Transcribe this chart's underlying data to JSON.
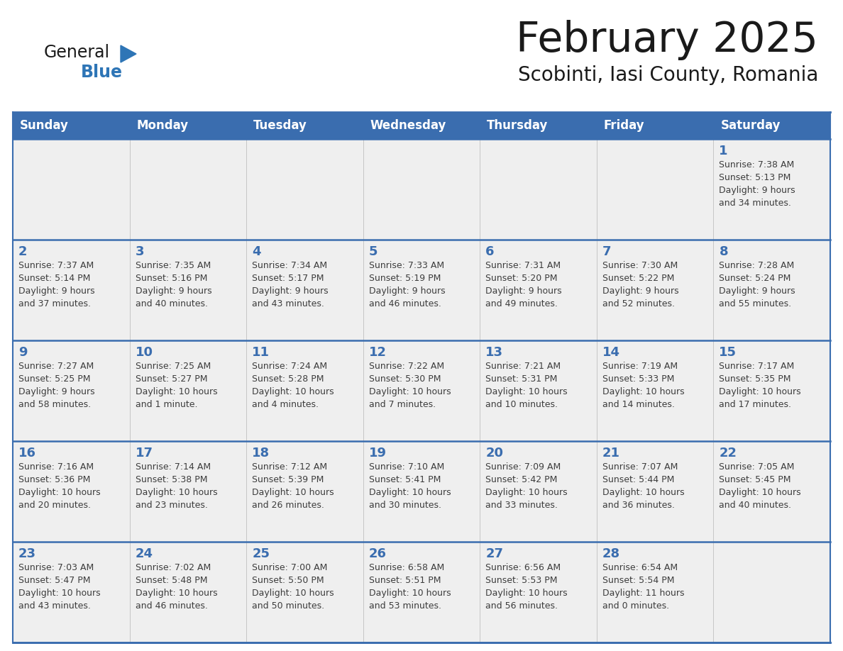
{
  "title": "February 2025",
  "subtitle": "Scobinti, Iasi County, Romania",
  "header_bg": "#3A6DAF",
  "header_text_color": "#FFFFFF",
  "cell_bg": "#EFEFEF",
  "day_number_color": "#3A6DAF",
  "info_text_color": "#3d3d3d",
  "border_color": "#3A6DAF",
  "logo_general_color": "#1a1a1a",
  "logo_blue_color": "#2E75B6",
  "logo_triangle_color": "#2E75B6",
  "days_of_week": [
    "Sunday",
    "Monday",
    "Tuesday",
    "Wednesday",
    "Thursday",
    "Friday",
    "Saturday"
  ],
  "weeks": [
    [
      {
        "day": null,
        "info": ""
      },
      {
        "day": null,
        "info": ""
      },
      {
        "day": null,
        "info": ""
      },
      {
        "day": null,
        "info": ""
      },
      {
        "day": null,
        "info": ""
      },
      {
        "day": null,
        "info": ""
      },
      {
        "day": 1,
        "info": "Sunrise: 7:38 AM\nSunset: 5:13 PM\nDaylight: 9 hours\nand 34 minutes."
      }
    ],
    [
      {
        "day": 2,
        "info": "Sunrise: 7:37 AM\nSunset: 5:14 PM\nDaylight: 9 hours\nand 37 minutes."
      },
      {
        "day": 3,
        "info": "Sunrise: 7:35 AM\nSunset: 5:16 PM\nDaylight: 9 hours\nand 40 minutes."
      },
      {
        "day": 4,
        "info": "Sunrise: 7:34 AM\nSunset: 5:17 PM\nDaylight: 9 hours\nand 43 minutes."
      },
      {
        "day": 5,
        "info": "Sunrise: 7:33 AM\nSunset: 5:19 PM\nDaylight: 9 hours\nand 46 minutes."
      },
      {
        "day": 6,
        "info": "Sunrise: 7:31 AM\nSunset: 5:20 PM\nDaylight: 9 hours\nand 49 minutes."
      },
      {
        "day": 7,
        "info": "Sunrise: 7:30 AM\nSunset: 5:22 PM\nDaylight: 9 hours\nand 52 minutes."
      },
      {
        "day": 8,
        "info": "Sunrise: 7:28 AM\nSunset: 5:24 PM\nDaylight: 9 hours\nand 55 minutes."
      }
    ],
    [
      {
        "day": 9,
        "info": "Sunrise: 7:27 AM\nSunset: 5:25 PM\nDaylight: 9 hours\nand 58 minutes."
      },
      {
        "day": 10,
        "info": "Sunrise: 7:25 AM\nSunset: 5:27 PM\nDaylight: 10 hours\nand 1 minute."
      },
      {
        "day": 11,
        "info": "Sunrise: 7:24 AM\nSunset: 5:28 PM\nDaylight: 10 hours\nand 4 minutes."
      },
      {
        "day": 12,
        "info": "Sunrise: 7:22 AM\nSunset: 5:30 PM\nDaylight: 10 hours\nand 7 minutes."
      },
      {
        "day": 13,
        "info": "Sunrise: 7:21 AM\nSunset: 5:31 PM\nDaylight: 10 hours\nand 10 minutes."
      },
      {
        "day": 14,
        "info": "Sunrise: 7:19 AM\nSunset: 5:33 PM\nDaylight: 10 hours\nand 14 minutes."
      },
      {
        "day": 15,
        "info": "Sunrise: 7:17 AM\nSunset: 5:35 PM\nDaylight: 10 hours\nand 17 minutes."
      }
    ],
    [
      {
        "day": 16,
        "info": "Sunrise: 7:16 AM\nSunset: 5:36 PM\nDaylight: 10 hours\nand 20 minutes."
      },
      {
        "day": 17,
        "info": "Sunrise: 7:14 AM\nSunset: 5:38 PM\nDaylight: 10 hours\nand 23 minutes."
      },
      {
        "day": 18,
        "info": "Sunrise: 7:12 AM\nSunset: 5:39 PM\nDaylight: 10 hours\nand 26 minutes."
      },
      {
        "day": 19,
        "info": "Sunrise: 7:10 AM\nSunset: 5:41 PM\nDaylight: 10 hours\nand 30 minutes."
      },
      {
        "day": 20,
        "info": "Sunrise: 7:09 AM\nSunset: 5:42 PM\nDaylight: 10 hours\nand 33 minutes."
      },
      {
        "day": 21,
        "info": "Sunrise: 7:07 AM\nSunset: 5:44 PM\nDaylight: 10 hours\nand 36 minutes."
      },
      {
        "day": 22,
        "info": "Sunrise: 7:05 AM\nSunset: 5:45 PM\nDaylight: 10 hours\nand 40 minutes."
      }
    ],
    [
      {
        "day": 23,
        "info": "Sunrise: 7:03 AM\nSunset: 5:47 PM\nDaylight: 10 hours\nand 43 minutes."
      },
      {
        "day": 24,
        "info": "Sunrise: 7:02 AM\nSunset: 5:48 PM\nDaylight: 10 hours\nand 46 minutes."
      },
      {
        "day": 25,
        "info": "Sunrise: 7:00 AM\nSunset: 5:50 PM\nDaylight: 10 hours\nand 50 minutes."
      },
      {
        "day": 26,
        "info": "Sunrise: 6:58 AM\nSunset: 5:51 PM\nDaylight: 10 hours\nand 53 minutes."
      },
      {
        "day": 27,
        "info": "Sunrise: 6:56 AM\nSunset: 5:53 PM\nDaylight: 10 hours\nand 56 minutes."
      },
      {
        "day": 28,
        "info": "Sunrise: 6:54 AM\nSunset: 5:54 PM\nDaylight: 11 hours\nand 0 minutes."
      },
      {
        "day": null,
        "info": ""
      }
    ]
  ]
}
